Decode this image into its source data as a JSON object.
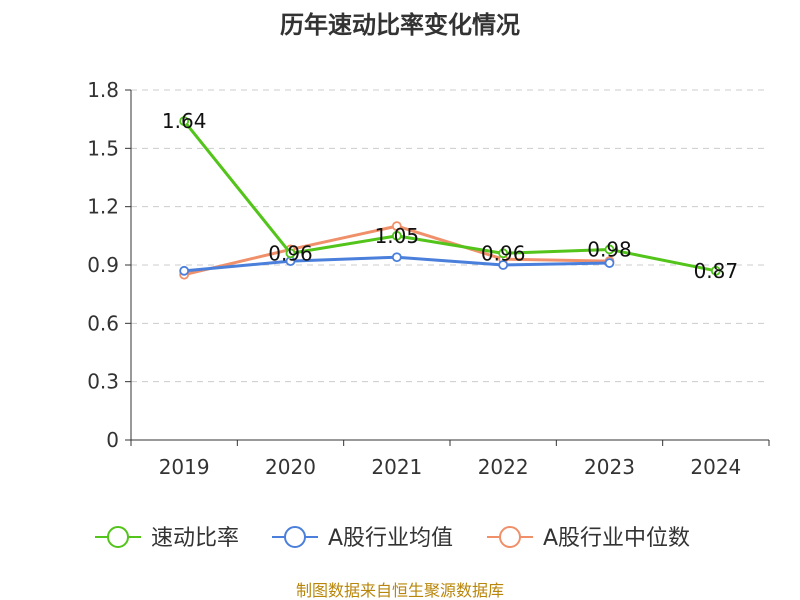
{
  "chart_data": {
    "type": "line",
    "title": "历年速动比率变化情况",
    "categories": [
      "2019",
      "2020",
      "2021",
      "2022",
      "2023",
      "2024"
    ],
    "ylim": [
      0,
      1.8
    ],
    "yticks": [
      0,
      0.3,
      0.6,
      0.9,
      1.2,
      1.5,
      1.8
    ],
    "grid": true,
    "legend_position": "bottom",
    "series": [
      {
        "name": "速动比率",
        "color": "#52c41a",
        "values": [
          1.64,
          0.96,
          1.05,
          0.96,
          0.98,
          0.87
        ],
        "labels": [
          "1.64",
          "0.96",
          "1.05",
          "0.96",
          "0.98",
          "0.87"
        ]
      },
      {
        "name": "A股行业均值",
        "color": "#4a7fdb",
        "values": [
          0.87,
          0.92,
          0.94,
          0.9,
          0.91,
          null
        ]
      },
      {
        "name": "A股行业中位数",
        "color": "#f0906a",
        "values": [
          0.85,
          0.98,
          1.1,
          0.93,
          0.92,
          null
        ]
      }
    ]
  },
  "source": "制图数据来自恒生聚源数据库"
}
